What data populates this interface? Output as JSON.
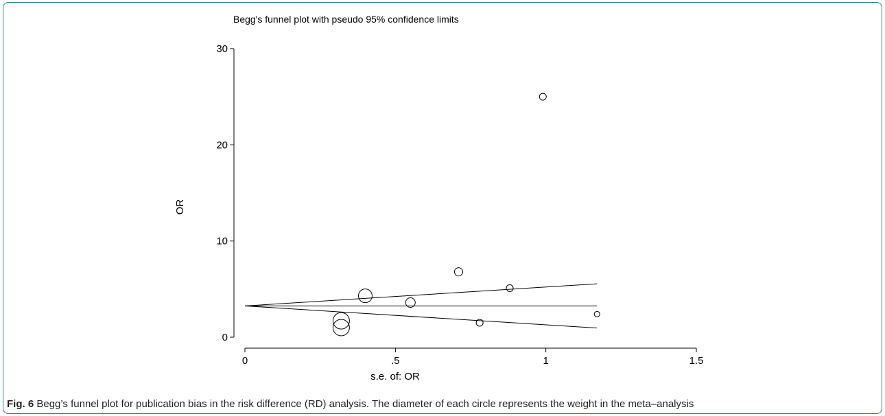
{
  "chart_data": {
    "type": "scatter",
    "title": "Begg's funnel plot with pseudo 95% confidence limits",
    "xlabel": "s.e. of: OR",
    "ylabel": "OR",
    "xlim": [
      0,
      1.5
    ],
    "ylim": [
      0,
      30
    ],
    "x_ticks": [
      0,
      0.5,
      1,
      1.5
    ],
    "x_tick_labels": [
      "0",
      ".5",
      "1",
      "1.5"
    ],
    "y_ticks": [
      0,
      10,
      20,
      30
    ],
    "y_tick_labels": [
      "0",
      "10",
      "20",
      "30"
    ],
    "grid": false,
    "points": [
      {
        "x": 0.32,
        "y": 1.7,
        "weight": 12
      },
      {
        "x": 0.32,
        "y": 1.0,
        "weight": 12
      },
      {
        "x": 0.4,
        "y": 4.3,
        "weight": 10
      },
      {
        "x": 0.55,
        "y": 3.6,
        "weight": 7
      },
      {
        "x": 0.71,
        "y": 6.8,
        "weight": 6
      },
      {
        "x": 0.78,
        "y": 1.5,
        "weight": 5
      },
      {
        "x": 0.88,
        "y": 5.1,
        "weight": 5
      },
      {
        "x": 0.99,
        "y": 25.0,
        "weight": 5
      },
      {
        "x": 1.17,
        "y": 2.4,
        "weight": 4
      }
    ],
    "pooled_estimate": 3.25,
    "confidence_limits": {
      "x_range": [
        0,
        1.17
      ],
      "upper": [
        3.25,
        5.55
      ],
      "lower": [
        3.25,
        0.95
      ]
    },
    "marker": "hollow circle"
  },
  "caption": {
    "label": "Fig. 6",
    "text": "Begg’s funnel plot for publication bias in the risk difference (RD) analysis. The diameter of each circle represents the weight in the meta–analysis"
  },
  "colors": {
    "border": "#2f7d9b",
    "ink": "#000000",
    "caption_text": "#222222"
  }
}
